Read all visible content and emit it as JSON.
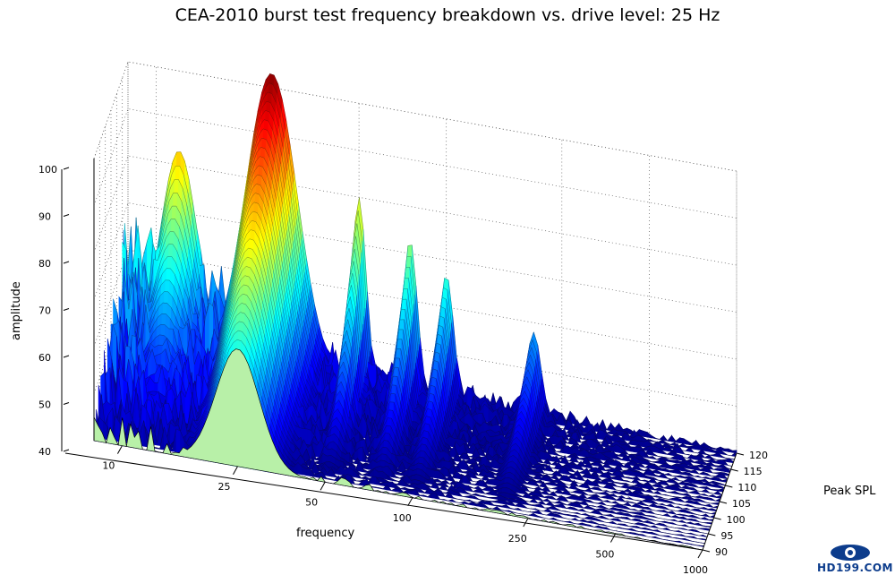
{
  "chart_data": {
    "type": "surface",
    "title": "CEA-2010 burst test frequency breakdown vs. drive level: 25 Hz",
    "xlabel": "frequency",
    "ylabel": "Peak SPL",
    "zlabel": "amplitude",
    "x_scale": "log",
    "x_ticks": [
      "10",
      "25",
      "50",
      "100",
      "250",
      "500",
      "1000"
    ],
    "x_tick_values": [
      10,
      25,
      50,
      100,
      250,
      500,
      1000
    ],
    "y_ticks": [
      "90",
      "95",
      "100",
      "105",
      "110",
      "115",
      "120"
    ],
    "y_tick_values": [
      90,
      95,
      100,
      105,
      110,
      115,
      120
    ],
    "z_ticks": [
      "40",
      "50",
      "60",
      "70",
      "80",
      "90",
      "100"
    ],
    "z_tick_values": [
      40,
      50,
      60,
      70,
      80,
      90,
      100
    ],
    "xlim": [
      8,
      1000
    ],
    "ylim": [
      90,
      120
    ],
    "zlim": [
      40,
      100
    ],
    "colormap": "jet",
    "grid": true,
    "peaks": [
      {
        "frequency": 25,
        "peak_spl": 120,
        "amplitude": 103
      },
      {
        "frequency": 50,
        "peak_spl": 118,
        "amplitude": 80
      },
      {
        "frequency": 75,
        "peak_spl": 118,
        "amplitude": 73
      },
      {
        "frequency": 100,
        "peak_spl": 118,
        "amplitude": 67
      },
      {
        "frequency": 12,
        "peak_spl": 120,
        "amplitude": 83
      },
      {
        "frequency": 200,
        "peak_spl": 117,
        "amplitude": 58
      }
    ]
  },
  "watermark": {
    "text": "HD199.COM",
    "colors": [
      "#0c3c8c",
      "#ffffff"
    ]
  }
}
